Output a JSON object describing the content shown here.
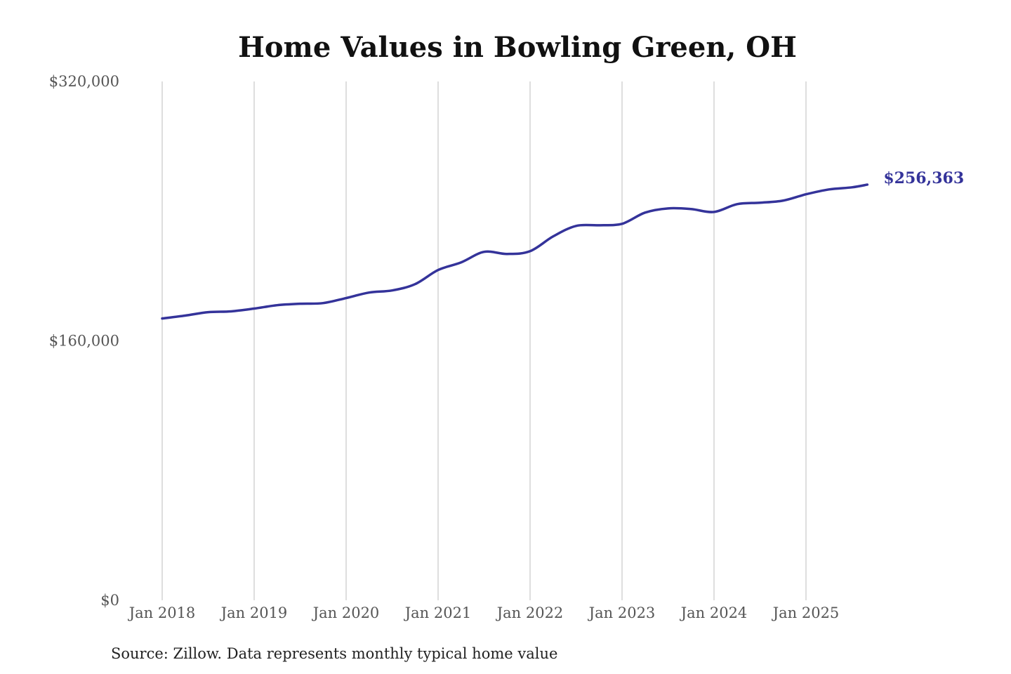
{
  "chart_data": {
    "type": "line",
    "title": "Home Values in Bowling Green, OH",
    "source": "Source: Zillow. Data represents monthly typical home value",
    "ylim": [
      0,
      320000
    ],
    "y_ticks": [
      {
        "value": 0,
        "label": "$0"
      },
      {
        "value": 160000,
        "label": "$160,000"
      },
      {
        "value": 320000,
        "label": "$320,000"
      }
    ],
    "x_ticks": [
      {
        "date": "2018-01",
        "label": "Jan 2018"
      },
      {
        "date": "2019-01",
        "label": "Jan 2019"
      },
      {
        "date": "2020-01",
        "label": "Jan 2020"
      },
      {
        "date": "2021-01",
        "label": "Jan 2021"
      },
      {
        "date": "2022-01",
        "label": "Jan 2022"
      },
      {
        "date": "2023-01",
        "label": "Jan 2023"
      },
      {
        "date": "2024-01",
        "label": "Jan 2024"
      },
      {
        "date": "2025-01",
        "label": "Jan 2025"
      }
    ],
    "grid": "vertical",
    "line_color": "#34339a",
    "end_label": "$256,363",
    "series": [
      {
        "points": [
          [
            "2018-01",
            173800
          ],
          [
            "2018-04",
            175600
          ],
          [
            "2018-07",
            177700
          ],
          [
            "2018-10",
            178200
          ],
          [
            "2019-01",
            179900
          ],
          [
            "2019-04",
            182000
          ],
          [
            "2019-07",
            182900
          ],
          [
            "2019-10",
            183300
          ],
          [
            "2020-01",
            186400
          ],
          [
            "2020-04",
            189800
          ],
          [
            "2020-07",
            191100
          ],
          [
            "2020-10",
            195000
          ],
          [
            "2021-01",
            203700
          ],
          [
            "2021-04",
            208400
          ],
          [
            "2021-07",
            214900
          ],
          [
            "2021-10",
            213600
          ],
          [
            "2022-01",
            215300
          ],
          [
            "2022-04",
            224400
          ],
          [
            "2022-07",
            230900
          ],
          [
            "2022-10",
            231300
          ],
          [
            "2023-01",
            232200
          ],
          [
            "2023-04",
            239100
          ],
          [
            "2023-07",
            241700
          ],
          [
            "2023-10",
            241300
          ],
          [
            "2024-01",
            239500
          ],
          [
            "2024-04",
            244300
          ],
          [
            "2024-07",
            245200
          ],
          [
            "2024-10",
            246500
          ],
          [
            "2025-01",
            250400
          ],
          [
            "2025-04",
            253400
          ],
          [
            "2025-07",
            254700
          ],
          [
            "2025-09",
            256363
          ]
        ]
      }
    ]
  }
}
